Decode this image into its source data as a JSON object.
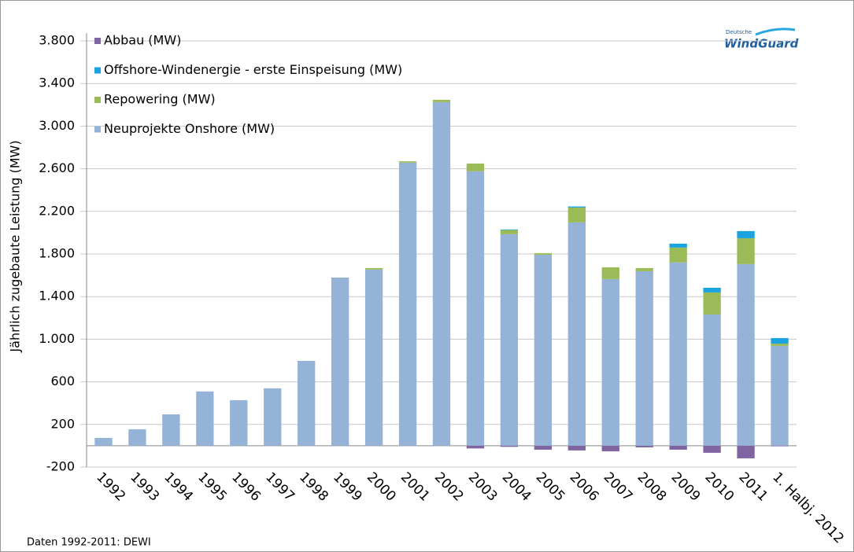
{
  "chart_data": {
    "type": "bar",
    "y_label": "Jährlich zugebaute Leistung (MW)",
    "source": "Daten 1992-2011: DEWI",
    "logo": {
      "top": "Deutsche",
      "main": "WindGuard"
    },
    "categories": [
      "1992",
      "1993",
      "1994",
      "1995",
      "1996",
      "1997",
      "1998",
      "1999",
      "2000",
      "2001",
      "2002",
      "2003",
      "2004",
      "2005",
      "2006",
      "2007",
      "2008",
      "2009",
      "2010",
      "2011",
      "1. Halbj. 2012"
    ],
    "series": [
      {
        "name": "Neuprojekte Onshore (MW)",
        "color": "#95b3d7",
        "values": [
          74,
          155,
          295,
          510,
          428,
          539,
          797,
          1579,
          1653,
          2657,
          3225,
          2576,
          1985,
          1793,
          2096,
          1565,
          1638,
          1720,
          1232,
          1705,
          937
        ]
      },
      {
        "name": "Repowering (MW)",
        "color": "#9bbb59",
        "values": [
          0,
          0,
          0,
          0,
          0,
          0,
          0,
          0,
          15,
          13,
          22,
          73,
          40,
          15,
          140,
          110,
          30,
          140,
          207,
          243,
          22
        ]
      },
      {
        "name": "Offshore-Windenergie - erste Einspeisung (MW)",
        "color": "#1aa3e0",
        "values": [
          0,
          0,
          0,
          0,
          0,
          0,
          0,
          0,
          0,
          0,
          0,
          0,
          5,
          0,
          10,
          0,
          0,
          37,
          44,
          67,
          52
        ]
      },
      {
        "name": "Abbau (MW)",
        "color": "#8064a2",
        "values": [
          0,
          0,
          0,
          0,
          0,
          0,
          0,
          0,
          0,
          0,
          0,
          -25,
          -10,
          -37,
          -44,
          -52,
          -15,
          -37,
          -66,
          -118,
          -5
        ]
      }
    ],
    "stacked": true,
    "ylim": [
      -200,
      3800
    ],
    "yticks": [
      -200,
      200,
      600,
      {
        "value": 1000,
        "label": "1.000"
      },
      {
        "value": 1400,
        "label": "1.400"
      },
      {
        "value": 1800,
        "label": "1.800"
      },
      {
        "value": 2200,
        "label": "2.200"
      },
      {
        "value": 2600,
        "label": "2.600"
      },
      {
        "value": 3000,
        "label": "3.000"
      },
      {
        "value": 3400,
        "label": "3.400"
      },
      {
        "value": 3800,
        "label": "3.800"
      }
    ],
    "grid": true,
    "legend": "top-left"
  }
}
